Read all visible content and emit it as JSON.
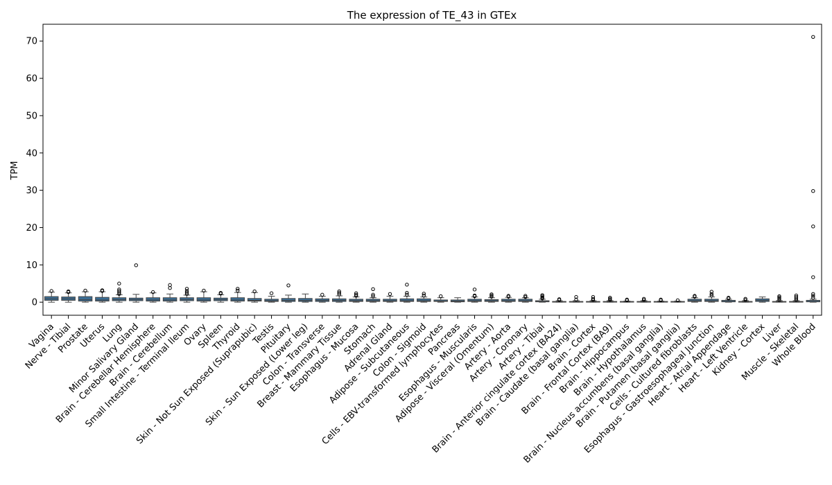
{
  "chart_data": {
    "type": "box",
    "title": "The expression of TE_43 in GTEx",
    "xlabel": "",
    "ylabel": "TPM",
    "ylim": [
      -3.5,
      74.5
    ],
    "yticks": [
      0,
      10,
      20,
      30,
      40,
      50,
      60,
      70
    ],
    "grid": false,
    "box_color": "#3a6e96",
    "categories": [
      "Vagina",
      "Nerve - Tibial",
      "Prostate",
      "Uterus",
      "Lung",
      "Minor Salivary Gland",
      "Brain - Cerebellar Hemisphere",
      "Brain - Cerebellum",
      "Small Intestine - Terminal Ileum",
      "Ovary",
      "Spleen",
      "Thyroid",
      "Skin - Not Sun Exposed (Suprapubic)",
      "Testis",
      "Pituitary",
      "Skin - Sun Exposed (Lower leg)",
      "Colon - Transverse",
      "Breast - Mammary Tissue",
      "Esophagus - Mucosa",
      "Stomach",
      "Adrenal Gland",
      "Adipose - Subcutaneous",
      "Colon - Sigmoid",
      "Cells - EBV-transformed lymphocytes",
      "Pancreas",
      "Esophagus - Muscularis",
      "Adipose - Visceral (Omentum)",
      "Artery - Aorta",
      "Artery - Coronary",
      "Artery - Tibial",
      "Brain - Anterior cingulate cortex (BA24)",
      "Brain - Caudate (basal ganglia)",
      "Brain - Cortex",
      "Brain - Frontal Cortex (BA9)",
      "Brain - Hippocampus",
      "Brain - Hypothalamus",
      "Brain - Nucleus accumbens (basal ganglia)",
      "Brain - Putamen (basal ganglia)",
      "Cells - Cultured fibroblasts",
      "Esophagus - Gastroesophageal Junction",
      "Heart - Atrial Appendage",
      "Heart - Left Ventricle",
      "Kidney - Cortex",
      "Liver",
      "Muscle - Skeletal",
      "Whole Blood"
    ],
    "boxes": [
      {
        "min": 0.0,
        "q1": 0.5,
        "median": 0.9,
        "q3": 1.5,
        "max": 2.7,
        "outliers": [
          3.0
        ]
      },
      {
        "min": 0.0,
        "q1": 0.5,
        "median": 0.9,
        "q3": 1.4,
        "max": 2.5,
        "outliers": [
          2.7,
          2.9
        ]
      },
      {
        "min": 0.0,
        "q1": 0.3,
        "median": 0.7,
        "q3": 1.5,
        "max": 2.8,
        "outliers": [
          3.1
        ]
      },
      {
        "min": 0.0,
        "q1": 0.3,
        "median": 0.6,
        "q3": 1.3,
        "max": 2.8,
        "outliers": [
          3.0,
          3.2
        ]
      },
      {
        "min": 0.0,
        "q1": 0.4,
        "median": 0.7,
        "q3": 1.2,
        "max": 2.0,
        "outliers": [
          2.2,
          2.6,
          3.0,
          3.4,
          5.0
        ]
      },
      {
        "min": 0.0,
        "q1": 0.4,
        "median": 0.7,
        "q3": 1.1,
        "max": 2.1,
        "outliers": [
          9.9
        ]
      },
      {
        "min": 0.0,
        "q1": 0.3,
        "median": 0.6,
        "q3": 1.2,
        "max": 2.5,
        "outliers": [
          2.7
        ]
      },
      {
        "min": 0.0,
        "q1": 0.3,
        "median": 0.6,
        "q3": 1.2,
        "max": 2.2,
        "outliers": [
          3.8,
          4.6
        ]
      },
      {
        "min": 0.0,
        "q1": 0.4,
        "median": 0.7,
        "q3": 1.2,
        "max": 1.9,
        "outliers": [
          2.2,
          2.6,
          3.0,
          3.6
        ]
      },
      {
        "min": 0.0,
        "q1": 0.3,
        "median": 0.6,
        "q3": 1.2,
        "max": 2.8,
        "outliers": [
          3.1
        ]
      },
      {
        "min": 0.0,
        "q1": 0.4,
        "median": 0.7,
        "q3": 1.1,
        "max": 2.0,
        "outliers": [
          2.3,
          2.5
        ]
      },
      {
        "min": 0.0,
        "q1": 0.3,
        "median": 0.6,
        "q3": 1.2,
        "max": 2.6,
        "outliers": [
          3.1,
          3.6
        ]
      },
      {
        "min": 0.0,
        "q1": 0.3,
        "median": 0.5,
        "q3": 1.0,
        "max": 2.6,
        "outliers": [
          2.9
        ]
      },
      {
        "min": 0.0,
        "q1": 0.2,
        "median": 0.4,
        "q3": 0.8,
        "max": 1.6,
        "outliers": [
          2.4
        ]
      },
      {
        "min": 0.0,
        "q1": 0.2,
        "median": 0.5,
        "q3": 1.0,
        "max": 1.9,
        "outliers": [
          4.5
        ]
      },
      {
        "min": 0.0,
        "q1": 0.2,
        "median": 0.5,
        "q3": 1.0,
        "max": 2.2,
        "outliers": []
      },
      {
        "min": 0.0,
        "q1": 0.2,
        "median": 0.5,
        "q3": 0.9,
        "max": 1.6,
        "outliers": [
          2.0
        ]
      },
      {
        "min": 0.0,
        "q1": 0.2,
        "median": 0.5,
        "q3": 0.9,
        "max": 1.7,
        "outliers": [
          2.1,
          2.5,
          2.9
        ]
      },
      {
        "min": 0.0,
        "q1": 0.2,
        "median": 0.4,
        "q3": 0.8,
        "max": 1.4,
        "outliers": [
          1.7,
          2.0,
          2.4
        ]
      },
      {
        "min": 0.0,
        "q1": 0.2,
        "median": 0.4,
        "q3": 0.8,
        "max": 1.2,
        "outliers": [
          1.6,
          2.0,
          3.5
        ]
      },
      {
        "min": 0.0,
        "q1": 0.2,
        "median": 0.4,
        "q3": 0.8,
        "max": 1.6,
        "outliers": [
          2.2
        ]
      },
      {
        "min": 0.0,
        "q1": 0.2,
        "median": 0.4,
        "q3": 0.9,
        "max": 1.6,
        "outliers": [
          2.0,
          2.5,
          4.7
        ]
      },
      {
        "min": 0.0,
        "q1": 0.2,
        "median": 0.4,
        "q3": 0.9,
        "max": 1.4,
        "outliers": [
          1.8,
          2.3
        ]
      },
      {
        "min": 0.0,
        "q1": 0.2,
        "median": 0.3,
        "q3": 0.6,
        "max": 1.2,
        "outliers": [
          1.6
        ]
      },
      {
        "min": 0.0,
        "q1": 0.1,
        "median": 0.3,
        "q3": 0.6,
        "max": 1.2,
        "outliers": []
      },
      {
        "min": 0.0,
        "q1": 0.2,
        "median": 0.4,
        "q3": 0.8,
        "max": 1.4,
        "outliers": [
          1.6,
          1.8,
          3.4
        ]
      },
      {
        "min": 0.0,
        "q1": 0.2,
        "median": 0.4,
        "q3": 0.7,
        "max": 1.2,
        "outliers": [
          1.5,
          1.8,
          2.1
        ]
      },
      {
        "min": 0.0,
        "q1": 0.2,
        "median": 0.4,
        "q3": 0.8,
        "max": 1.3,
        "outliers": [
          1.5,
          1.7
        ]
      },
      {
        "min": 0.0,
        "q1": 0.2,
        "median": 0.4,
        "q3": 0.8,
        "max": 1.2,
        "outliers": [
          1.4,
          1.7
        ]
      },
      {
        "min": 0.0,
        "q1": 0.1,
        "median": 0.2,
        "q3": 0.4,
        "max": 0.8,
        "outliers": [
          1.0,
          1.3,
          1.6,
          1.9
        ]
      },
      {
        "min": 0.0,
        "q1": 0.05,
        "median": 0.1,
        "q3": 0.2,
        "max": 0.4,
        "outliers": [
          0.6,
          0.8
        ]
      },
      {
        "min": 0.0,
        "q1": 0.05,
        "median": 0.1,
        "q3": 0.2,
        "max": 0.4,
        "outliers": [
          0.7,
          1.4
        ]
      },
      {
        "min": 0.0,
        "q1": 0.05,
        "median": 0.1,
        "q3": 0.2,
        "max": 0.4,
        "outliers": [
          0.6,
          0.9,
          1.4
        ]
      },
      {
        "min": 0.0,
        "q1": 0.05,
        "median": 0.1,
        "q3": 0.2,
        "max": 0.4,
        "outliers": [
          0.6,
          0.9,
          1.2
        ]
      },
      {
        "min": 0.0,
        "q1": 0.05,
        "median": 0.1,
        "q3": 0.2,
        "max": 0.3,
        "outliers": [
          0.5,
          0.7
        ]
      },
      {
        "min": 0.0,
        "q1": 0.05,
        "median": 0.1,
        "q3": 0.2,
        "max": 0.4,
        "outliers": [
          0.6,
          0.9
        ]
      },
      {
        "min": 0.0,
        "q1": 0.05,
        "median": 0.1,
        "q3": 0.2,
        "max": 0.3,
        "outliers": [
          0.5,
          0.7
        ]
      },
      {
        "min": 0.0,
        "q1": 0.05,
        "median": 0.1,
        "q3": 0.2,
        "max": 0.3,
        "outliers": [
          0.5
        ]
      },
      {
        "min": 0.0,
        "q1": 0.2,
        "median": 0.4,
        "q3": 0.8,
        "max": 1.2,
        "outliers": [
          1.5,
          1.7
        ]
      },
      {
        "min": 0.0,
        "q1": 0.2,
        "median": 0.4,
        "q3": 0.8,
        "max": 1.4,
        "outliers": [
          1.8,
          2.2,
          2.8
        ]
      },
      {
        "min": 0.0,
        "q1": 0.1,
        "median": 0.2,
        "q3": 0.5,
        "max": 0.8,
        "outliers": [
          1.0,
          1.2
        ]
      },
      {
        "min": 0.0,
        "q1": 0.05,
        "median": 0.1,
        "q3": 0.2,
        "max": 0.4,
        "outliers": [
          0.6,
          0.9
        ]
      },
      {
        "min": 0.0,
        "q1": 0.2,
        "median": 0.5,
        "q3": 0.9,
        "max": 1.4,
        "outliers": []
      },
      {
        "min": 0.0,
        "q1": 0.05,
        "median": 0.1,
        "q3": 0.2,
        "max": 0.4,
        "outliers": [
          0.6,
          1.0,
          1.3,
          1.6
        ]
      },
      {
        "min": 0.0,
        "q1": 0.05,
        "median": 0.1,
        "q3": 0.2,
        "max": 0.4,
        "outliers": [
          0.6,
          1.0,
          1.4,
          1.8
        ]
      },
      {
        "min": 0.0,
        "q1": 0.1,
        "median": 0.2,
        "q3": 0.5,
        "max": 0.8,
        "outliers": [
          1.2,
          1.7,
          2.2,
          6.7,
          20.3,
          29.8,
          71.1
        ]
      }
    ]
  }
}
